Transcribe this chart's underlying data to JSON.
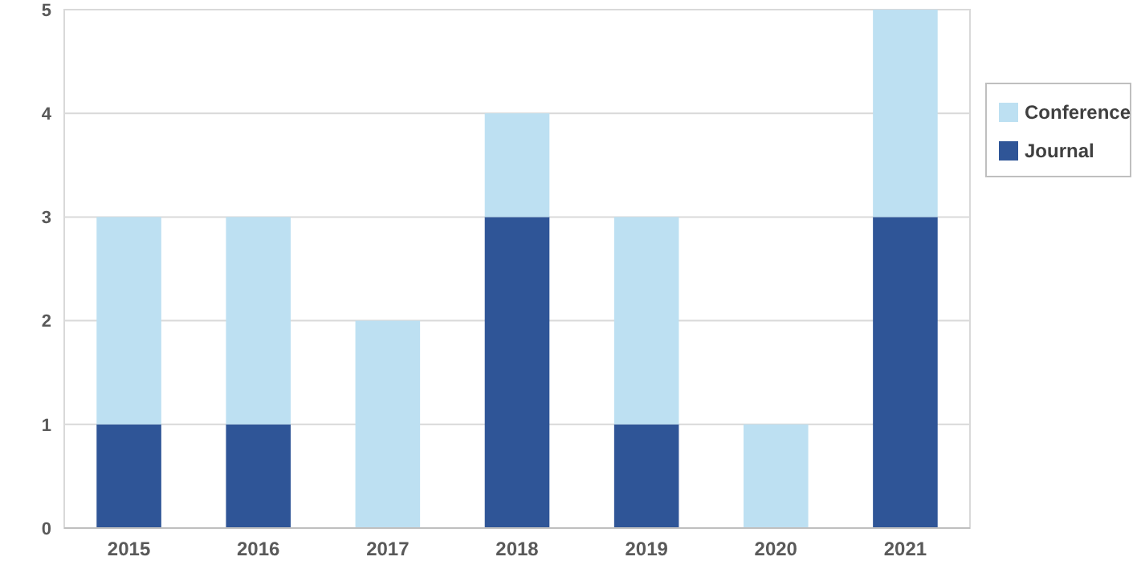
{
  "chart_data": {
    "type": "bar",
    "stacked": true,
    "categories": [
      "2015",
      "2016",
      "2017",
      "2018",
      "2019",
      "2020",
      "2021"
    ],
    "series": [
      {
        "name": "Journal",
        "color": "#2f5597",
        "values": [
          1,
          1,
          0,
          3,
          1,
          0,
          3
        ]
      },
      {
        "name": "Conference",
        "color": "#bde0f2",
        "values": [
          2,
          2,
          2,
          1,
          2,
          1,
          2
        ]
      }
    ],
    "ylim": [
      0,
      5
    ],
    "yticks": [
      0,
      1,
      2,
      3,
      4,
      5
    ],
    "grid": "y",
    "legend": "right"
  }
}
